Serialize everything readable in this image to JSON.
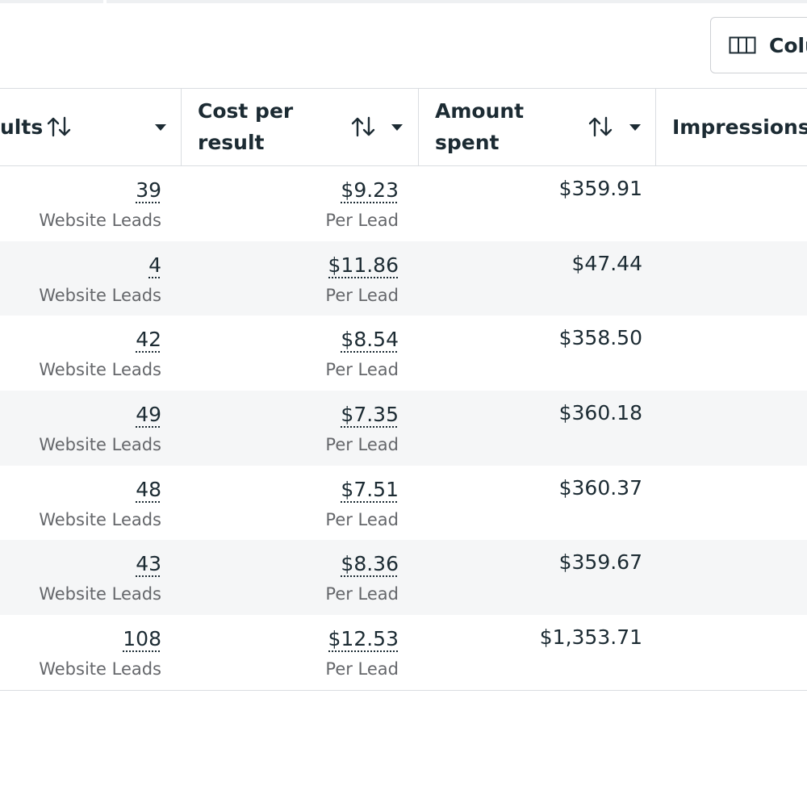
{
  "toolbar": {
    "columns_label": "Colu",
    "columns_icon": "columns-icon"
  },
  "table": {
    "headers": {
      "results": "ults",
      "cost_per_result": [
        "Cost per",
        "result"
      ],
      "amount_spent": [
        "Amount",
        "spent"
      ],
      "impressions": "Impressions"
    },
    "icons": {
      "sort": "sort-arrows-icon",
      "menu": "caret-down-icon"
    },
    "rows": [
      {
        "results": "39",
        "results_type": "Website Leads",
        "cost": "$9.23",
        "cost_unit": "Per Lead",
        "spent": "$359.91"
      },
      {
        "results": "4",
        "results_type": "Website Leads",
        "cost": "$11.86",
        "cost_unit": "Per Lead",
        "spent": "$47.44"
      },
      {
        "results": "42",
        "results_type": "Website Leads",
        "cost": "$8.54",
        "cost_unit": "Per Lead",
        "spent": "$358.50"
      },
      {
        "results": "49",
        "results_type": "Website Leads",
        "cost": "$7.35",
        "cost_unit": "Per Lead",
        "spent": "$360.18"
      },
      {
        "results": "48",
        "results_type": "Website Leads",
        "cost": "$7.51",
        "cost_unit": "Per Lead",
        "spent": "$360.37"
      },
      {
        "results": "43",
        "results_type": "Website Leads",
        "cost": "$8.36",
        "cost_unit": "Per Lead",
        "spent": "$359.67"
      },
      {
        "results": "108",
        "results_type": "Website Leads",
        "cost": "$12.53",
        "cost_unit": "Per Lead",
        "spent": "$1,353.71"
      }
    ]
  },
  "colors": {
    "text": "#1c2b33",
    "muted": "#65676b",
    "border": "#dadde1",
    "row_alt": "#f5f6f7"
  }
}
